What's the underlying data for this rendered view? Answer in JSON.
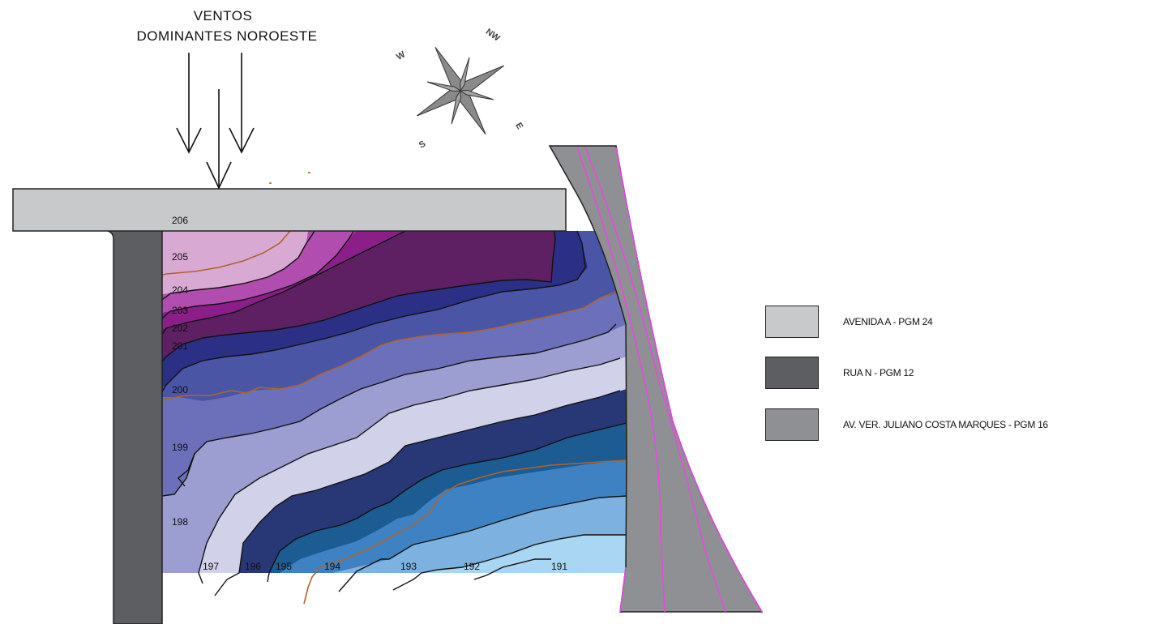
{
  "wind": {
    "line1": "VENTOS",
    "line2": "DOMINANTES  NOROESTE"
  },
  "compass": {
    "labels": [
      "NW",
      "W",
      "S",
      "E"
    ]
  },
  "contours": [
    "206",
    "205",
    "204",
    "203",
    "202",
    "201",
    "200",
    "199",
    "198",
    "197",
    "196",
    "195",
    "194",
    "193",
    "192",
    "191"
  ],
  "legend": [
    {
      "label": "AVENIDA A - PGM 24",
      "color": "#c8c9cb"
    },
    {
      "label": "RUA N - PGM 12",
      "color": "#5d5e62"
    },
    {
      "label": "AV. VER. JULIANO COSTA MARQUES - PGM 16",
      "color": "#8f9094"
    }
  ],
  "colors": {
    "avenida_a": "#c8c9cb",
    "rua_n": "#5d5e62",
    "av_juliano": "#8f9094",
    "road_line": "#e54ae0",
    "contour_major": "#b0632a"
  }
}
